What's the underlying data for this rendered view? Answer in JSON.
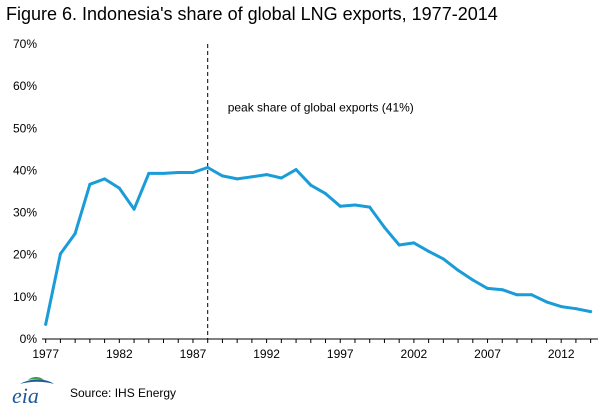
{
  "title": "Figure 6. Indonesia's share of global LNG exports, 1977-2014",
  "source": "Source: IHS Energy",
  "logo_text": "eia",
  "colors": {
    "line": "#1a9cd8",
    "axis": "#000000",
    "logo": "#1f5a96",
    "logo_accent": "#3ca24a"
  },
  "chart_data": {
    "type": "line",
    "title": "Figure 6. Indonesia's share of global LNG exports, 1977-2014",
    "xlabel": "",
    "ylabel": "",
    "xlim": [
      1976.75,
      2014.5
    ],
    "ylim": [
      0,
      70
    ],
    "x_ticks": [
      1977,
      1982,
      1987,
      1992,
      1997,
      2002,
      2007,
      2012
    ],
    "y_ticks": [
      0,
      10,
      20,
      30,
      40,
      50,
      60,
      70
    ],
    "y_tick_labels": [
      "0%",
      "10%",
      "20%",
      "30%",
      "40%",
      "50%",
      "60%",
      "70%"
    ],
    "grid": false,
    "legend": "none",
    "series": [
      {
        "x": [
          1977,
          1978,
          1979,
          1980,
          1981,
          1982,
          1983,
          1984,
          1985,
          1986,
          1987,
          1988,
          1989,
          1990,
          1991,
          1992,
          1993,
          1994,
          1995,
          1996,
          1997,
          1998,
          1999,
          2000,
          2001,
          2002,
          2003,
          2004,
          2005,
          2006,
          2007,
          2008,
          2009,
          2010,
          2011,
          2012,
          2013,
          2014
        ],
        "values": [
          3.5,
          20.2,
          25.0,
          36.7,
          38.0,
          35.8,
          30.8,
          39.3,
          39.3,
          39.5,
          39.5,
          40.7,
          38.7,
          38.0,
          38.5,
          39.0,
          38.2,
          40.2,
          36.5,
          34.5,
          31.5,
          31.8,
          31.3,
          26.5,
          22.3,
          22.8,
          20.8,
          19.0,
          16.3,
          14.0,
          12.0,
          11.7,
          10.5,
          10.5,
          8.8,
          7.7,
          7.2,
          6.5
        ]
      }
    ],
    "annotation": {
      "text": "peak share of global exports (41%)",
      "x": 1988,
      "y_text": 54
    }
  }
}
